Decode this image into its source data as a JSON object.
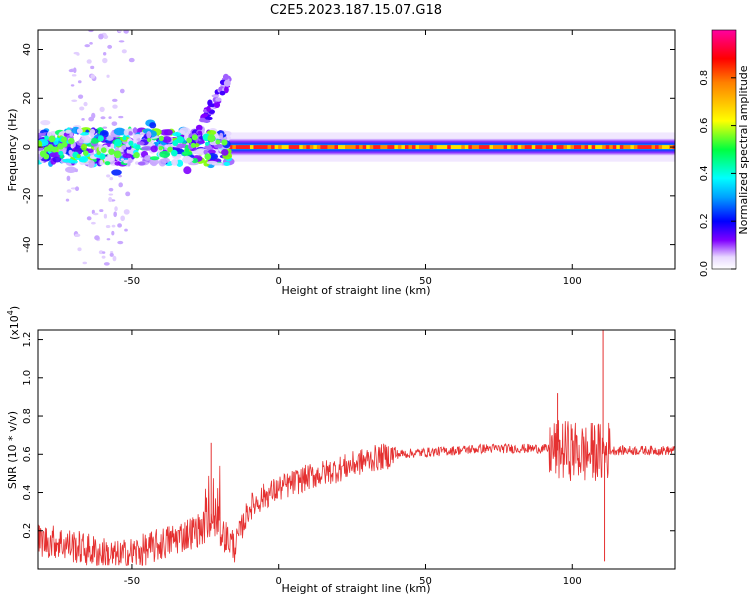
{
  "title": "C2E5.2023.187.15.07.G18",
  "chart_data": [
    {
      "type": "heatmap",
      "xlabel": "Height of straight line (km)",
      "ylabel": "Frequency (Hz)",
      "xlim": [
        -82,
        135
      ],
      "ylim": [
        -50,
        48
      ],
      "x_ticks": [
        -50,
        0,
        50,
        100
      ],
      "y_ticks": [
        -40,
        -20,
        0,
        20,
        40
      ],
      "colorbar": {
        "label": "Normalized spectral amplitude",
        "range": [
          0,
          1
        ],
        "ticks": [
          0.0,
          0.2,
          0.4,
          0.6,
          0.8
        ],
        "tick_labels": [
          "0.0",
          "0.2",
          "0.4",
          "0.6",
          "0.8"
        ],
        "colors": [
          "#ffffff",
          "#e8d8ff",
          "#8000ff",
          "#0000ff",
          "#00ffff",
          "#00ff40",
          "#ffff00",
          "#ff8000",
          "#ff0000",
          "#ff00a0"
        ]
      },
      "band": {
        "center_hz": 0,
        "stable_from_km": -17,
        "stable_to_km": 135,
        "scatter_region_km": [
          -82,
          -17
        ],
        "upward_trend_km": [
          -30,
          -17
        ],
        "upward_trend_hz": [
          2,
          28
        ]
      }
    },
    {
      "type": "line",
      "xlabel": "Height of straight line (km)",
      "ylabel": "SNR (10 * v/v)",
      "y_multiplier": "(x10",
      "y_multiplier_exp": "4",
      "xlim": [
        -82,
        135
      ],
      "ylim": [
        0,
        1.25
      ],
      "x_ticks": [
        -50,
        0,
        50,
        100
      ],
      "y_ticks": [
        0.2,
        0.4,
        0.6,
        0.8,
        1.0,
        1.2
      ],
      "color": "#e53030",
      "x": [
        -82,
        -75,
        -65,
        -55,
        -45,
        -35,
        -25,
        -20,
        -15,
        -10,
        -5,
        0,
        10,
        20,
        30,
        40,
        50,
        60,
        70,
        80,
        90,
        95,
        100,
        105,
        108,
        110,
        112,
        115,
        120,
        125,
        130,
        135
      ],
      "y": [
        0.15,
        0.14,
        0.1,
        0.06,
        0.1,
        0.16,
        0.22,
        0.2,
        0.12,
        0.32,
        0.38,
        0.42,
        0.48,
        0.52,
        0.57,
        0.6,
        0.61,
        0.62,
        0.63,
        0.63,
        0.63,
        0.62,
        0.62,
        0.6,
        0.62,
        0.6,
        0.62,
        0.62,
        0.62,
        0.62,
        0.62,
        0.62
      ],
      "spikes": [
        {
          "x": 110.5,
          "y": 1.25
        },
        {
          "x": 111,
          "y": 0.04
        },
        {
          "x": -23,
          "y": 0.66
        },
        {
          "x": 95,
          "y": 0.92
        }
      ]
    }
  ]
}
